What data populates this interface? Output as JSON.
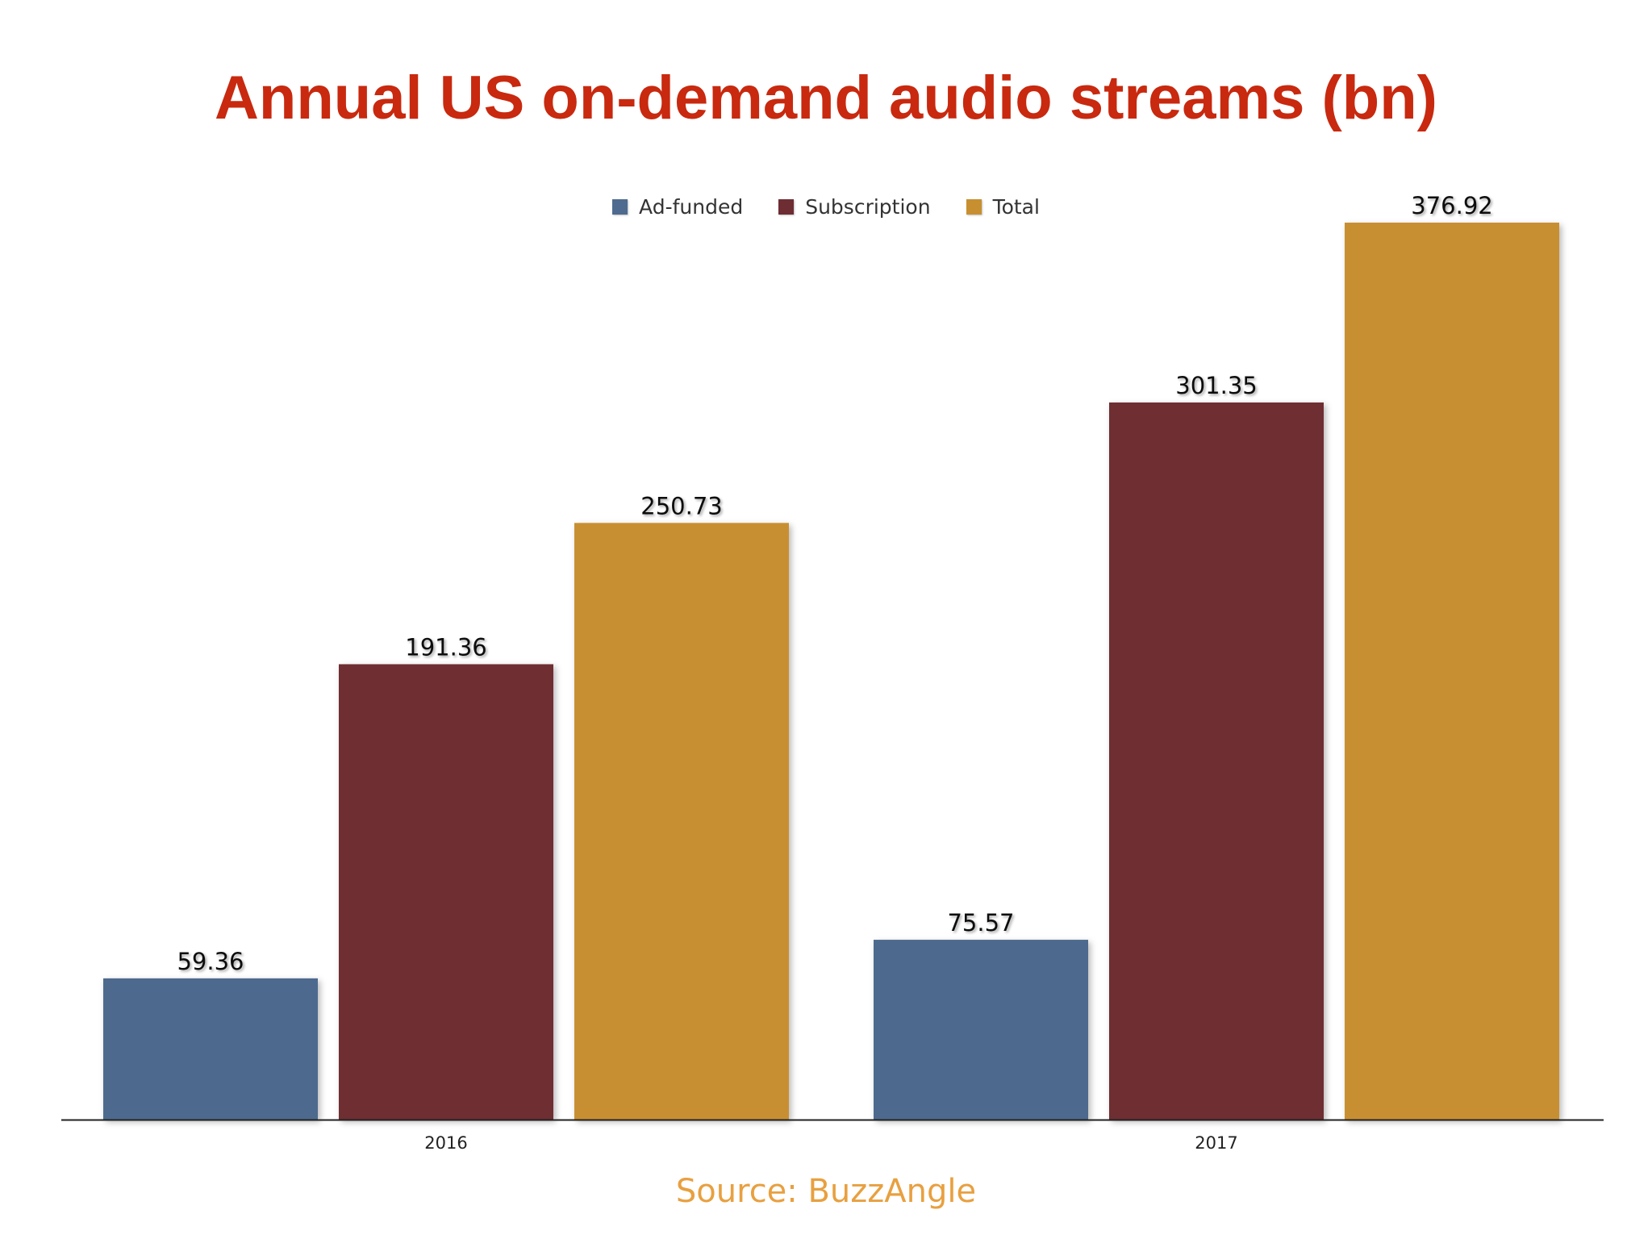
{
  "title": "Annual US on-demand audio streams (bn)",
  "source": "Source: BuzzAngle",
  "colors": {
    "title": "#c8290f",
    "source": "#e8a040",
    "ad_funded": "#4e6a8e",
    "subscription": "#6e2d33",
    "total": "#c88f30",
    "axis": "#222222",
    "label": "#111111"
  },
  "chart_data": {
    "type": "bar",
    "title": "Annual US on-demand audio streams (bn)",
    "xlabel": "",
    "ylabel": "",
    "categories": [
      "2016",
      "2017"
    ],
    "series": [
      {
        "name": "Ad-funded",
        "values": [
          59.36,
          75.57
        ],
        "labels": [
          "59.36",
          "75.57"
        ]
      },
      {
        "name": "Subscription",
        "values": [
          191.36,
          301.35
        ],
        "labels": [
          "191.36",
          "301.35"
        ]
      },
      {
        "name": "Total",
        "values": [
          250.73,
          376.92
        ],
        "labels": [
          "250.73",
          "376.92"
        ]
      }
    ],
    "ylim": [
      0,
      380
    ],
    "grid": false,
    "legend_position": "top-center",
    "data_labels": true
  }
}
